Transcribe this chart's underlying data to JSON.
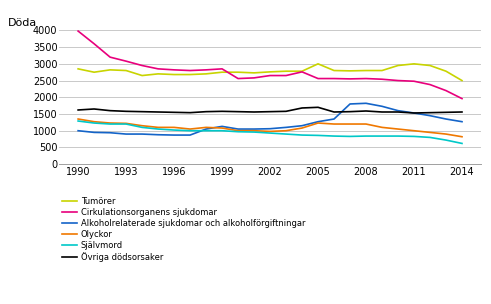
{
  "years": [
    1990,
    1991,
    1992,
    1993,
    1994,
    1995,
    1996,
    1997,
    1998,
    1999,
    2000,
    2001,
    2002,
    2003,
    2004,
    2005,
    2006,
    2007,
    2008,
    2009,
    2010,
    2011,
    2012,
    2013,
    2014
  ],
  "tumorer": [
    2850,
    2750,
    2820,
    2800,
    2650,
    2700,
    2680,
    2680,
    2700,
    2750,
    2750,
    2730,
    2760,
    2780,
    2780,
    3000,
    2800,
    2790,
    2800,
    2800,
    2950,
    3000,
    2950,
    2780,
    2500
  ],
  "cirkulation": [
    3980,
    3600,
    3200,
    3080,
    2950,
    2850,
    2820,
    2800,
    2820,
    2850,
    2560,
    2580,
    2650,
    2650,
    2760,
    2560,
    2560,
    2550,
    2560,
    2540,
    2500,
    2480,
    2380,
    2200,
    1960
  ],
  "alkohol": [
    1000,
    950,
    940,
    900,
    900,
    880,
    870,
    870,
    1050,
    1130,
    1050,
    1050,
    1060,
    1100,
    1150,
    1270,
    1350,
    1800,
    1820,
    1730,
    1600,
    1530,
    1450,
    1350,
    1270
  ],
  "olyckor": [
    1350,
    1270,
    1230,
    1220,
    1150,
    1100,
    1100,
    1050,
    1100,
    1080,
    1000,
    1000,
    980,
    1000,
    1080,
    1230,
    1200,
    1200,
    1200,
    1100,
    1050,
    1000,
    950,
    900,
    820
  ],
  "sjalvmord": [
    1290,
    1230,
    1200,
    1200,
    1100,
    1050,
    1020,
    1000,
    1000,
    1000,
    970,
    960,
    930,
    900,
    870,
    860,
    840,
    830,
    840,
    840,
    840,
    830,
    800,
    720,
    620
  ],
  "ovriga": [
    1620,
    1650,
    1600,
    1580,
    1570,
    1560,
    1550,
    1540,
    1570,
    1580,
    1570,
    1560,
    1570,
    1580,
    1680,
    1700,
    1560,
    1570,
    1590,
    1560,
    1560,
    1530,
    1540,
    1550,
    1560
  ],
  "ylabel": "Döda",
  "ylim": [
    0,
    4000
  ],
  "yticks": [
    0,
    500,
    1000,
    1500,
    2000,
    2500,
    3000,
    3500,
    4000
  ],
  "xticks": [
    1990,
    1993,
    1996,
    1999,
    2002,
    2005,
    2008,
    2011,
    2014
  ],
  "colors": {
    "tumorer": "#c8d400",
    "cirkulation": "#e8007c",
    "alkohol": "#1464c8",
    "olyckor": "#f07800",
    "sjalvmord": "#00c8c8",
    "ovriga": "#000000"
  },
  "legend": [
    "Tumörer",
    "Cirkulationsorganens sjukdomar",
    "Alkoholrelaterade sjukdomar och alkoholförgiftningar",
    "Olyckor",
    "Självmord",
    "Övriga dödsorsaker"
  ],
  "background_color": "#ffffff",
  "grid_color": "#c0c0c0",
  "linewidth": 1.2
}
